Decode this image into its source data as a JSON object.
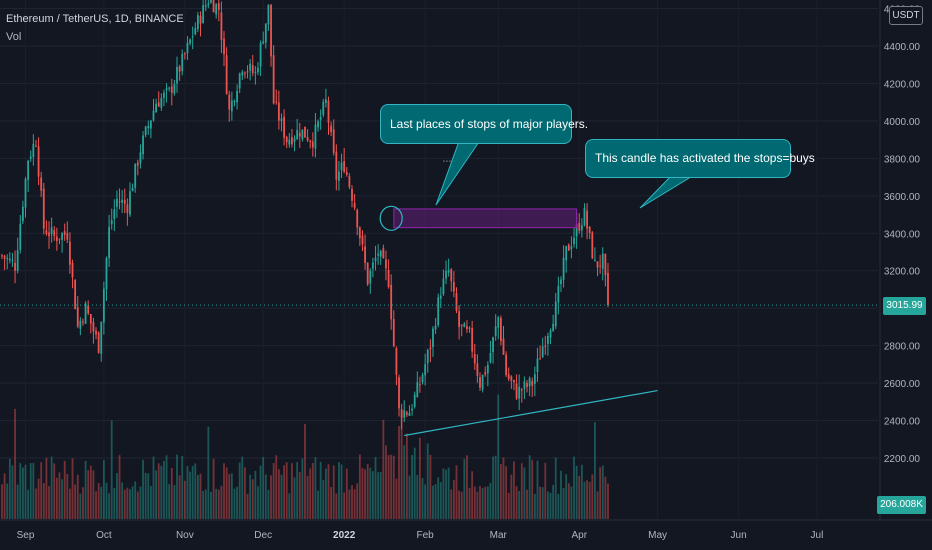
{
  "header": {
    "symbol_line": "Ethereum / TetherUS, 1D, BINANCE",
    "volume_label": "Vol"
  },
  "currency_badge": "USDT",
  "last_price_label": "3015.99",
  "volume_value_label": "206.008K",
  "annotations": {
    "callout_1": "Last places of stops of major players.",
    "callout_2": "This candle has activated the stops=buys"
  },
  "colors": {
    "background": "#131722",
    "up": "#26a69a",
    "down": "#ef5350",
    "callout_bg": "#006971",
    "callout_border": "#2fb6c2",
    "zone": "#8e24aa",
    "trendline": "#2fb6c2"
  },
  "chart_data": {
    "type": "candlestick",
    "y_axis": {
      "ticks": [
        "4600.00",
        "4400.00",
        "4200.00",
        "4000.00",
        "3800.00",
        "3600.00",
        "3400.00",
        "3200.00",
        "3000.00",
        "2800.00",
        "2600.00",
        "2400.00",
        "2200.00"
      ],
      "range": [
        2150,
        4650
      ]
    },
    "x_axis": {
      "ticks": [
        "Sep",
        "Oct",
        "Nov",
        "Dec",
        "2022",
        "Feb",
        "Mar",
        "Apr",
        "May",
        "Jun",
        "Jul"
      ]
    },
    "last_price": 3015.99,
    "close_path": [
      [
        "Aug 23",
        3280
      ],
      [
        "Aug 28",
        3230
      ],
      [
        "Sep 2",
        3800
      ],
      [
        "Sep 5",
        3900
      ],
      [
        "Sep 8",
        3430
      ],
      [
        "Sep 12",
        3380
      ],
      [
        "Sep 17",
        3400
      ],
      [
        "Sep 21",
        2900
      ],
      [
        "Sep 24",
        3000
      ],
      [
        "Sep 29",
        2800
      ],
      [
        "Oct 3",
        3420
      ],
      [
        "Oct 6",
        3580
      ],
      [
        "Oct 10",
        3550
      ],
      [
        "Oct 15",
        3850
      ],
      [
        "Oct 21",
        4100
      ],
      [
        "Oct 26",
        4150
      ],
      [
        "Nov 1",
        4350
      ],
      [
        "Nov 5",
        4500
      ],
      [
        "Nov 10",
        4650
      ],
      [
        "Nov 14",
        4600
      ],
      [
        "Nov 18",
        4050
      ],
      [
        "Nov 23",
        4300
      ],
      [
        "Nov 28",
        4250
      ],
      [
        "Dec 3",
        4600
      ],
      [
        "Dec 5",
        4100
      ],
      [
        "Dec 10",
        3900
      ],
      [
        "Dec 15",
        3950
      ],
      [
        "Dec 20",
        3900
      ],
      [
        "Dec 25",
        4100
      ],
      [
        "Dec 29",
        3700
      ],
      [
        "Jan 1",
        3770
      ],
      [
        "Jan 5",
        3550
      ],
      [
        "Jan 10",
        3150
      ],
      [
        "Jan 14",
        3300
      ],
      [
        "Jan 18",
        3150
      ],
      [
        "Jan 22",
        2450
      ],
      [
        "Jan 26",
        2450
      ],
      [
        "Jan 30",
        2600
      ],
      [
        "Feb 3",
        2800
      ],
      [
        "Feb 7",
        3100
      ],
      [
        "Feb 10",
        3200
      ],
      [
        "Feb 14",
        2900
      ],
      [
        "Feb 18",
        2850
      ],
      [
        "Feb 22",
        2600
      ],
      [
        "Feb 25",
        2700
      ],
      [
        "Mar 1",
        2950
      ],
      [
        "Mar 4",
        2650
      ],
      [
        "Mar 8",
        2550
      ],
      [
        "Mar 14",
        2600
      ],
      [
        "Mar 18",
        2800
      ],
      [
        "Mar 23",
        3000
      ],
      [
        "Mar 27",
        3300
      ],
      [
        "Apr 1",
        3450
      ],
      [
        "Apr 3",
        3500
      ],
      [
        "Apr 7",
        3230
      ],
      [
        "Apr 10",
        3250
      ],
      [
        "Apr 12",
        3016
      ]
    ],
    "volume": {
      "last_value": "206.008K"
    },
    "drawings": {
      "zone": {
        "from": "Jan 20",
        "to": "Mar 31",
        "low": 3430,
        "high": 3530
      },
      "trendline": {
        "from": [
          "Jan 24",
          2320
        ],
        "to": [
          "May 1",
          2560
        ]
      },
      "circle": {
        "at": [
          "Jan 19",
          3480
        ]
      }
    }
  }
}
